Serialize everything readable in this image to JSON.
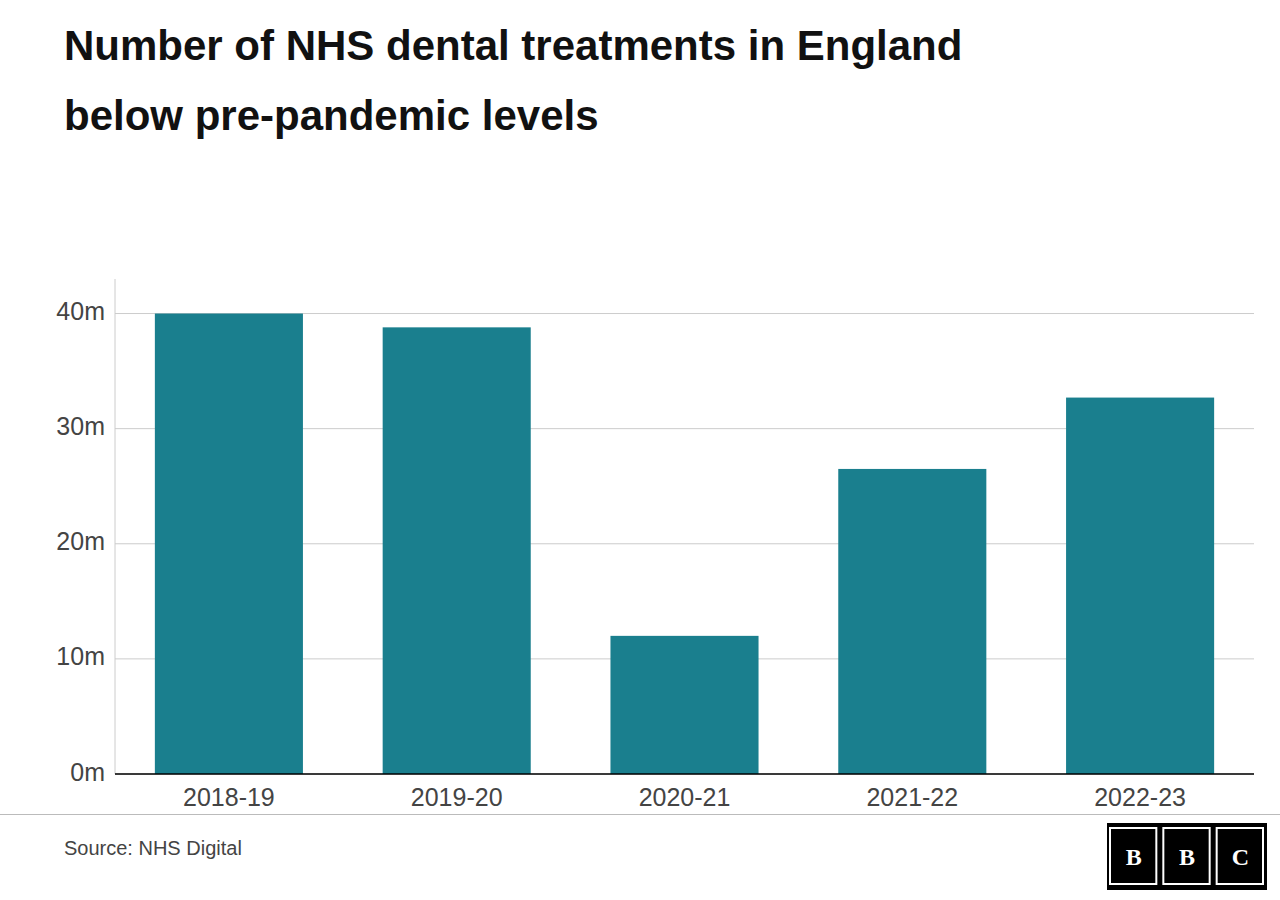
{
  "chart_data": {
    "type": "bar",
    "title": "Number of NHS dental treatments in England",
    "subtitle": "below pre-pandemic levels",
    "categories": [
      "2018-19",
      "2019-20",
      "2020-21",
      "2021-22",
      "2022-23"
    ],
    "values": [
      40.0,
      38.8,
      12.0,
      26.5,
      32.7
    ],
    "color": "#1a7f8e",
    "ylim": [
      0,
      43
    ],
    "yticks": [
      {
        "value": 0,
        "label": "0m"
      },
      {
        "value": 10,
        "label": "10m"
      },
      {
        "value": 20,
        "label": "20m"
      },
      {
        "value": 30,
        "label": "30m"
      },
      {
        "value": 40,
        "label": "40m"
      }
    ],
    "grid": true,
    "source": "Source: NHS Digital",
    "logo": "BBC"
  }
}
